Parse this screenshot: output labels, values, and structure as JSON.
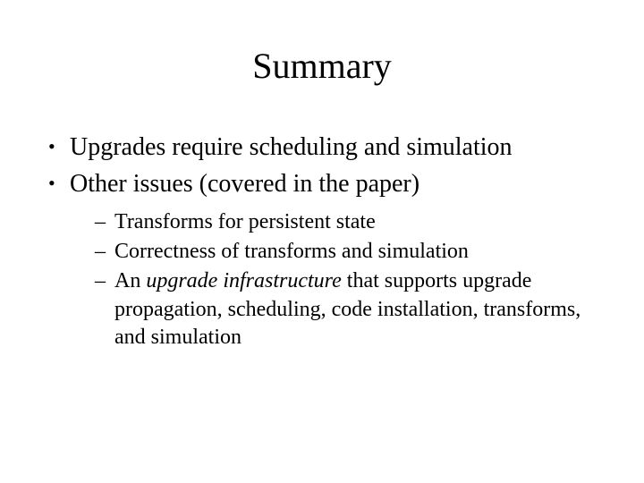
{
  "title": "Summary",
  "bullets": {
    "b1": "Upgrades require scheduling and simulation",
    "b2": "Other issues (covered in the paper)",
    "sub": {
      "s1": "Transforms for persistent state",
      "s2": "Correctness of transforms and simulation",
      "s3_a": "An ",
      "s3_i": "upgrade infrastructure",
      "s3_b": " that supports upgrade propagation, scheduling, code installation, transforms, and simulation"
    }
  },
  "colors": {
    "background": "#ffffff",
    "text": "#000000"
  },
  "typography": {
    "title_fontsize": 40,
    "body_fontsize": 28,
    "sub_fontsize": 24,
    "font_family": "Times New Roman"
  }
}
